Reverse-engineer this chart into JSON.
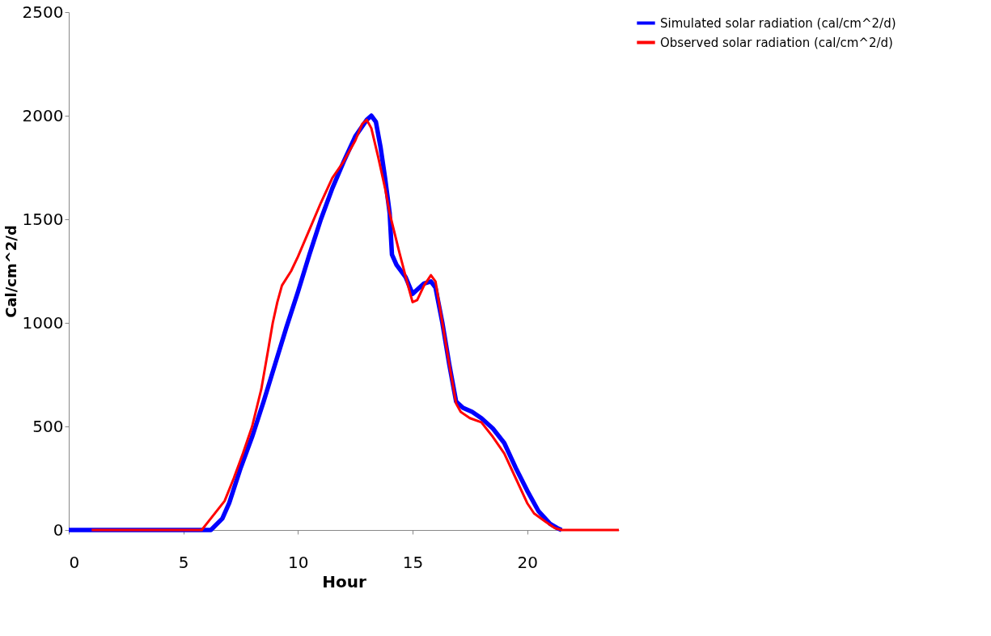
{
  "chart_data": {
    "type": "line",
    "xlabel": "Hour",
    "ylabel": "Cal/cm^2/d",
    "xlim": [
      0,
      24
    ],
    "xticks": [
      0,
      5,
      10,
      15,
      20
    ],
    "ylim": [
      0,
      2500
    ],
    "yticks": [
      0,
      500,
      1000,
      1500,
      2000,
      2500
    ],
    "grid": false,
    "legend": "right",
    "marker": "none",
    "line_style": "solid",
    "series": [
      {
        "name": "Simulated solar radiation (cal/cm^2/d)",
        "color": "#0000ff",
        "x": [
          0,
          6.2,
          6.7,
          7,
          7.5,
          8,
          8.5,
          9,
          9.5,
          10,
          10.5,
          11,
          11.5,
          12,
          12.5,
          13,
          13.2,
          13.4,
          13.6,
          13.8,
          14,
          14.1,
          14.3,
          14.7,
          15,
          15.2,
          15.5,
          15.8,
          16,
          16.3,
          16.6,
          16.9,
          17.2,
          17.6,
          18,
          18.5,
          19,
          19.5,
          20,
          20.5,
          21,
          21.3,
          21.5
        ],
        "values": [
          0,
          0,
          55,
          130,
          300,
          450,
          620,
          800,
          980,
          1150,
          1330,
          1500,
          1650,
          1780,
          1900,
          1980,
          2000,
          1970,
          1850,
          1700,
          1530,
          1330,
          1280,
          1220,
          1140,
          1160,
          1190,
          1200,
          1170,
          1000,
          800,
          620,
          590,
          570,
          540,
          490,
          420,
          300,
          190,
          90,
          30,
          10,
          0
        ]
      },
      {
        "name": "Observed solar radiation (cal/cm^2/d)",
        "color": "#ff0000",
        "x": [
          1,
          5.8,
          6.8,
          7.2,
          7.6,
          8,
          8.4,
          8.7,
          8.9,
          9.1,
          9.3,
          9.7,
          10,
          10.5,
          11,
          11.5,
          12,
          12.5,
          12.8,
          13,
          13.2,
          13.5,
          13.8,
          14,
          14.4,
          14.8,
          15,
          15.2,
          15.5,
          15.8,
          16,
          16.3,
          16.6,
          16.9,
          17.1,
          17.5,
          18,
          18.5,
          19,
          19.5,
          20,
          20.3,
          20.8,
          21.2,
          21.5,
          24
        ],
        "values": [
          0,
          0,
          140,
          250,
          370,
          500,
          680,
          870,
          1000,
          1100,
          1180,
          1250,
          1320,
          1450,
          1580,
          1700,
          1780,
          1880,
          1960,
          1980,
          1940,
          1800,
          1650,
          1530,
          1350,
          1180,
          1100,
          1110,
          1180,
          1230,
          1200,
          1000,
          800,
          610,
          570,
          540,
          520,
          450,
          370,
          250,
          130,
          80,
          40,
          10,
          0,
          0
        ]
      }
    ]
  }
}
